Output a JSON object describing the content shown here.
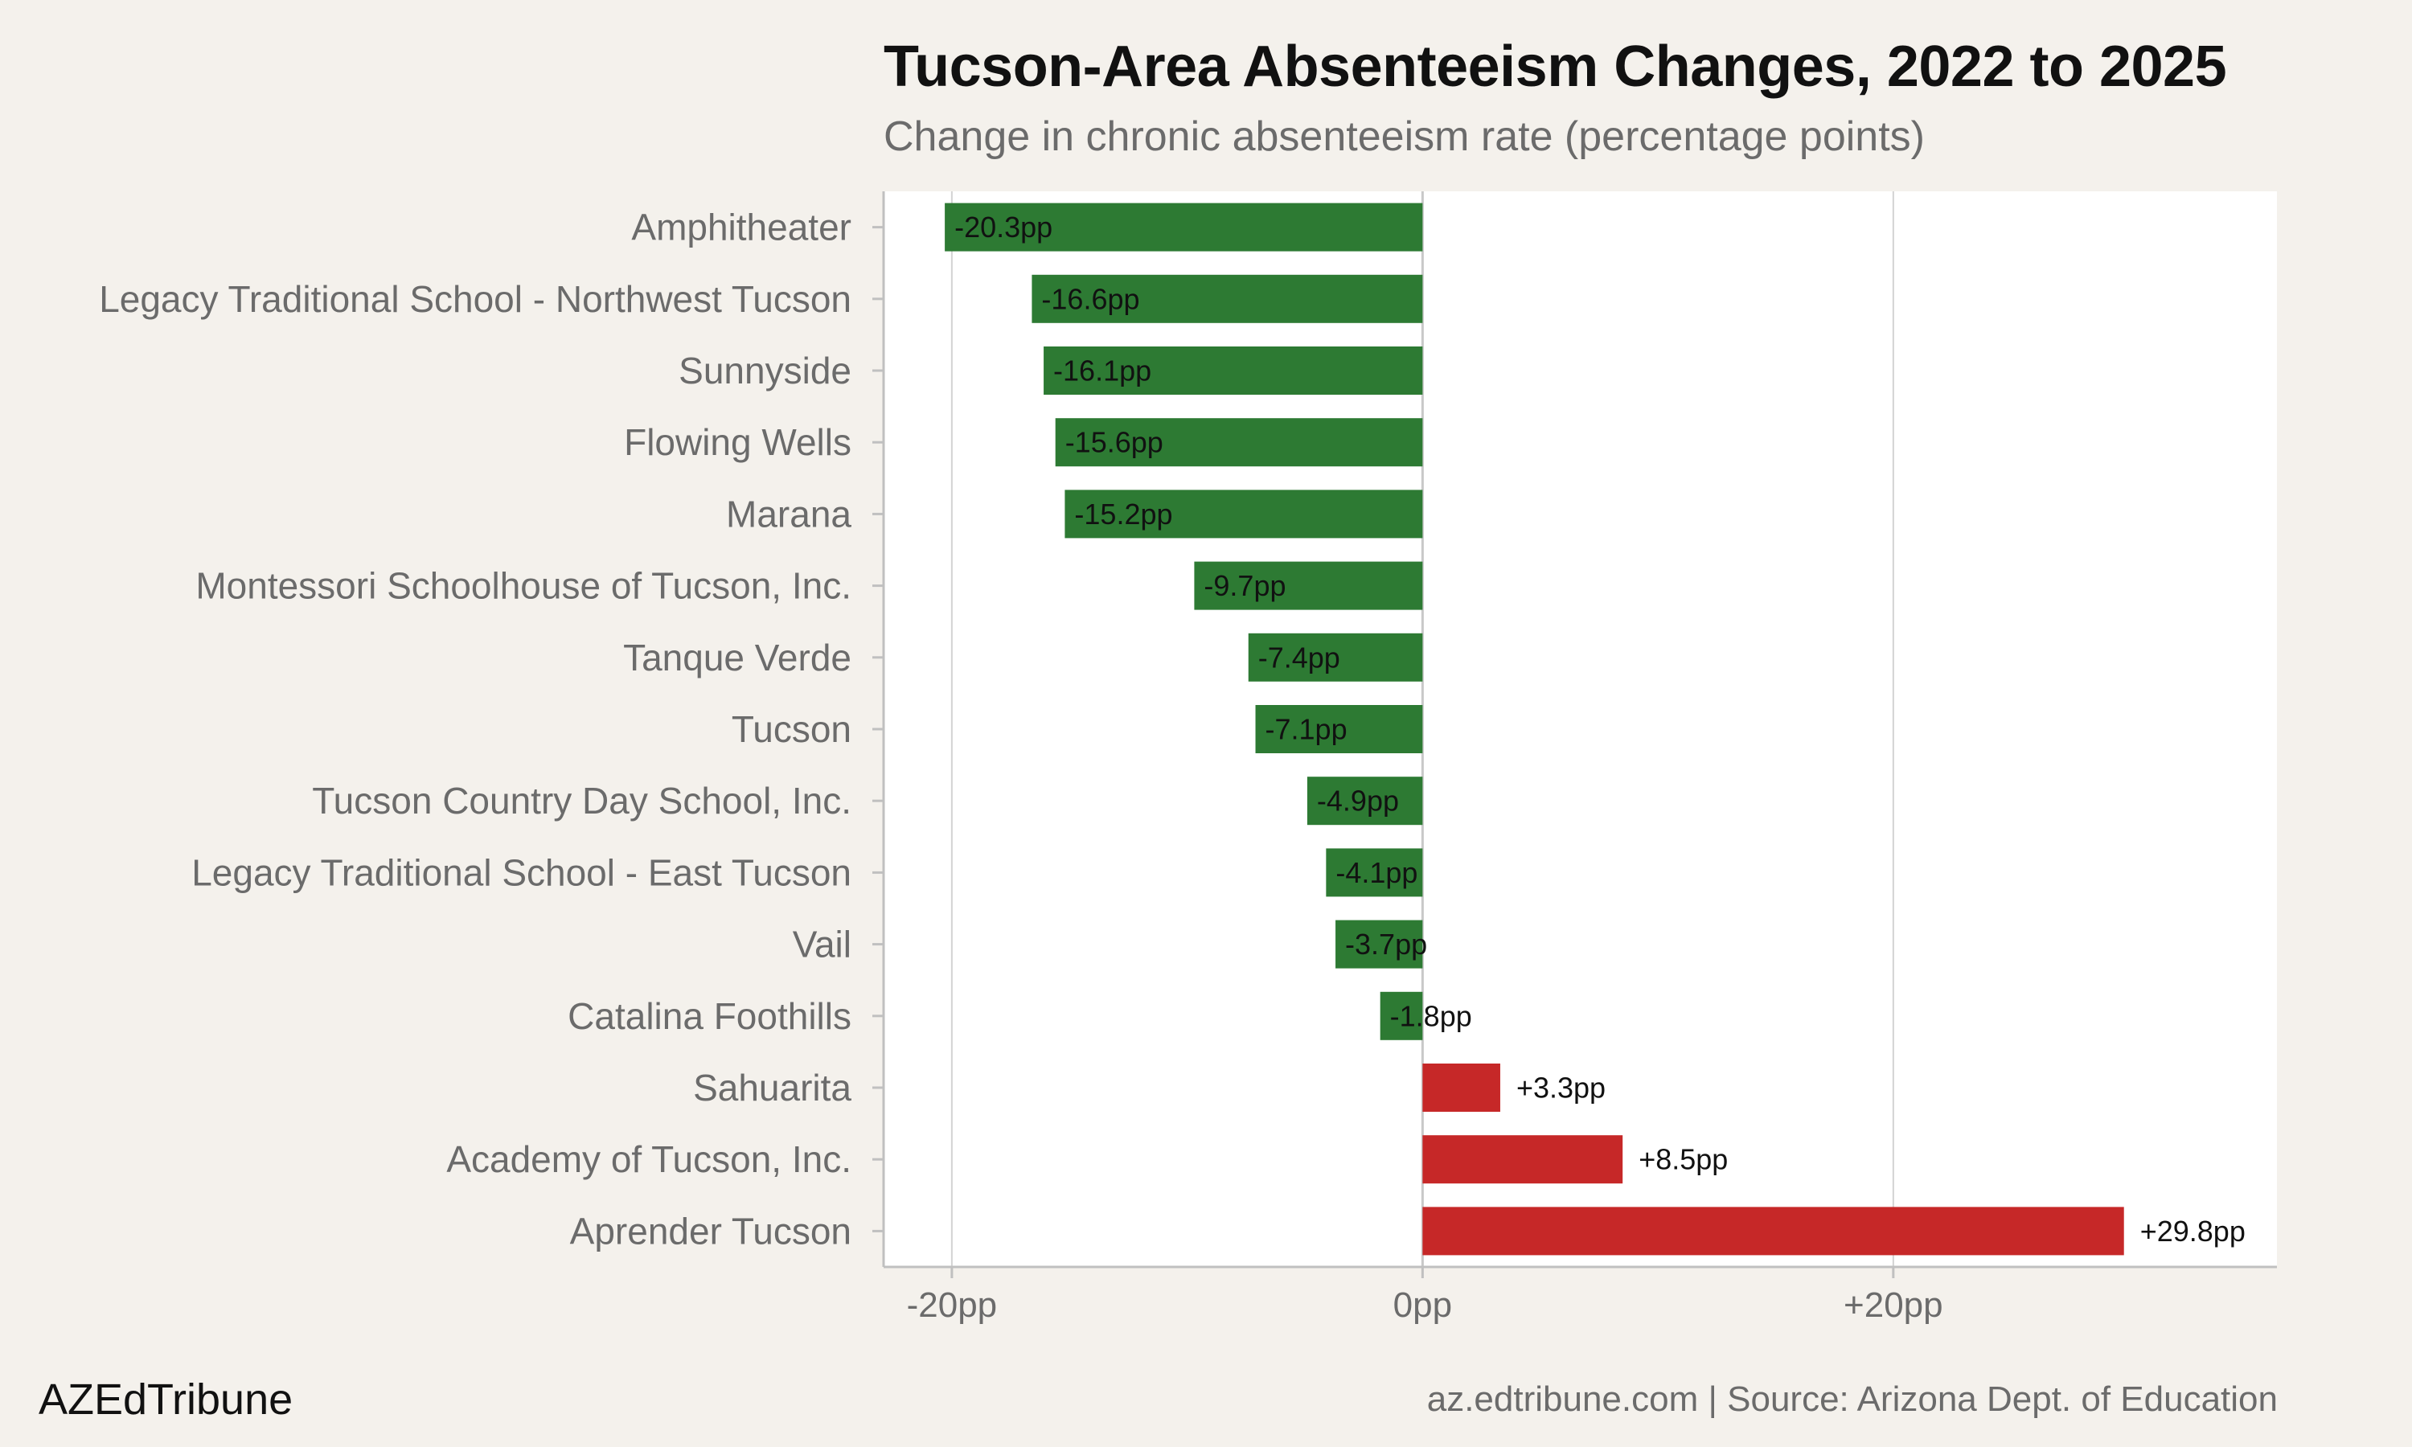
{
  "title": "Tucson-Area Absenteeism Changes, 2022 to 2025",
  "subtitle": "Change in chronic absenteeism rate (percentage points)",
  "brand": "AZEdTribune",
  "source": "az.edtribune.com | Source: Arizona Dept. of Education",
  "colors": {
    "decrease": "#2d7a33",
    "increase": "#c62828",
    "background": "#f4f1ec",
    "plot_background": "#ffffff",
    "grid": "#d3d3d3",
    "zero_line": "#c8c8c8",
    "axis": "#c0c0c0",
    "category_text": "#6b6b6b"
  },
  "chart_data": {
    "type": "bar",
    "orientation": "horizontal",
    "categories": [
      "Amphitheater",
      "Legacy Traditional School - Northwest Tucson",
      "Sunnyside",
      "Flowing Wells",
      "Marana",
      "Montessori Schoolhouse of Tucson, Inc.",
      "Tanque Verde",
      "Tucson",
      "Tucson Country Day School, Inc.",
      "Legacy Traditional School - East Tucson",
      "Vail",
      "Catalina Foothills",
      "Sahuarita",
      "Academy of Tucson, Inc.",
      "Aprender Tucson"
    ],
    "values": [
      -20.3,
      -16.6,
      -16.1,
      -15.6,
      -15.2,
      -9.7,
      -7.4,
      -7.1,
      -4.9,
      -4.1,
      -3.7,
      -1.8,
      3.3,
      8.5,
      29.8
    ],
    "data_labels": [
      "-20.3pp",
      "-16.6pp",
      "-16.1pp",
      "-15.6pp",
      "-15.2pp",
      "-9.7pp",
      "-7.4pp",
      "-7.1pp",
      "-4.9pp",
      "-4.1pp",
      "-3.7pp",
      "-1.8pp",
      "+3.3pp",
      "+8.5pp",
      "+29.8pp"
    ],
    "x_ticks": [
      -20,
      0,
      20
    ],
    "x_tick_labels": [
      "-20pp",
      "0pp",
      "+20pp"
    ],
    "xlim": [
      -22.9,
      36.3
    ],
    "grid": true
  }
}
